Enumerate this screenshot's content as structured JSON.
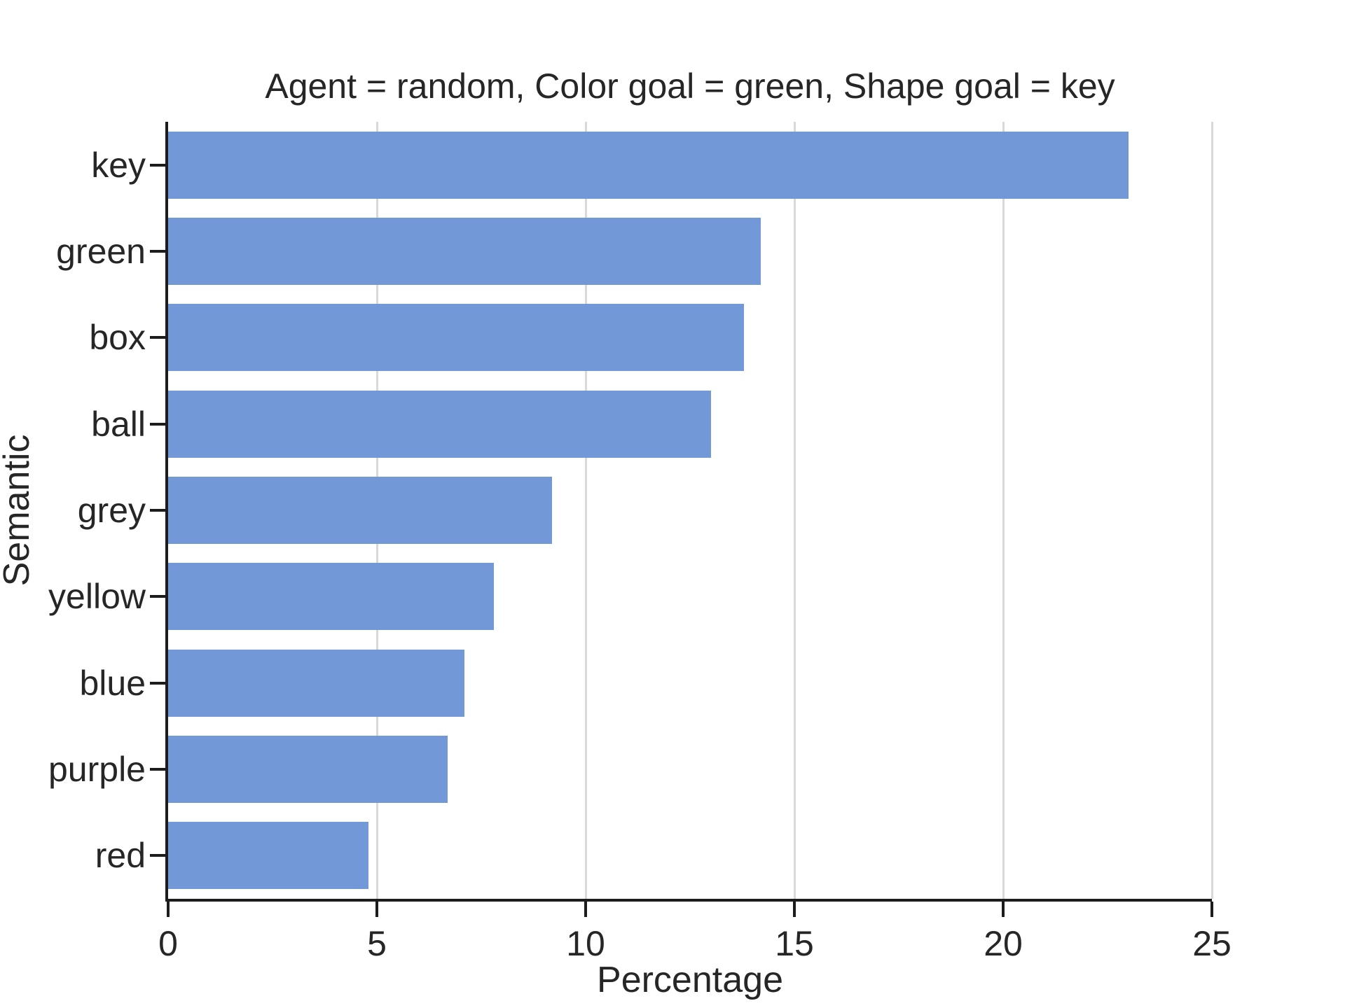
{
  "figure": {
    "title": "Agent = random, Color goal = green, Shape goal = key",
    "xlabel": "Percentage",
    "ylabel": "Semantic"
  },
  "chart_data": {
    "type": "bar",
    "orientation": "horizontal",
    "title": "Agent = random, Color goal = green, Shape goal = key",
    "xlabel": "Percentage",
    "ylabel": "Semantic",
    "categories": [
      "key",
      "green",
      "box",
      "ball",
      "grey",
      "yellow",
      "blue",
      "purple",
      "red"
    ],
    "values": [
      23.0,
      14.2,
      13.8,
      13.0,
      9.2,
      7.8,
      7.1,
      6.7,
      4.8
    ],
    "xlim": [
      0,
      25
    ],
    "xticks": [
      0,
      5,
      10,
      15,
      20,
      25
    ],
    "xtick_labels": [
      "0",
      "5",
      "10",
      "15",
      "20",
      "25"
    ],
    "grid": true,
    "legend": false,
    "bar_color": "#7398d8",
    "grid_color": "#d9d9d9",
    "axis_color": "#1c1c1c",
    "text_color": "#262626"
  }
}
